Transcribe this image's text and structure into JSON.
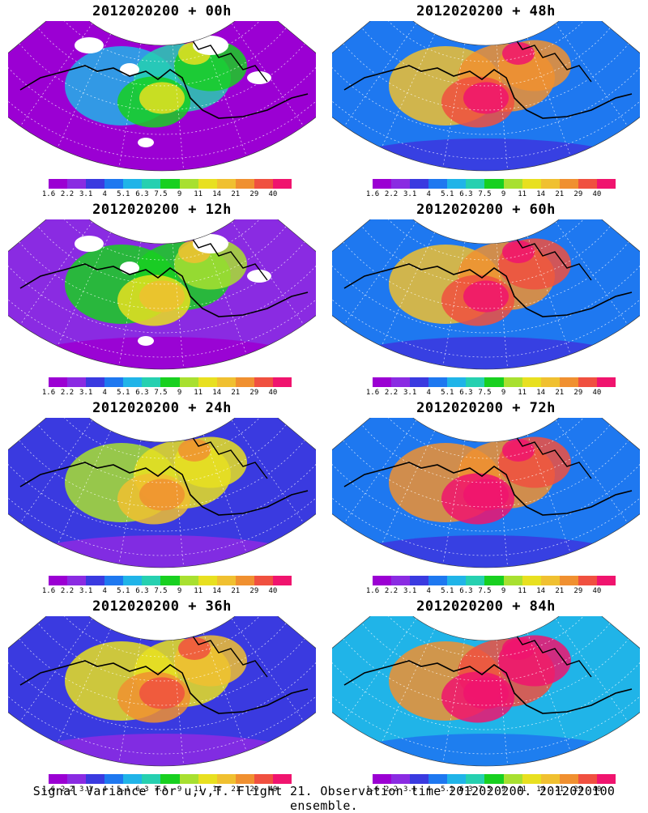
{
  "panels": [
    {
      "title": "2012020200 + 00h",
      "intensity": 0.2,
      "missing": true
    },
    {
      "title": "2012020200 + 48h",
      "intensity": 0.75,
      "missing": false
    },
    {
      "title": "2012020200 + 12h",
      "intensity": 0.35,
      "missing": true
    },
    {
      "title": "2012020200 + 60h",
      "intensity": 0.8,
      "missing": false
    },
    {
      "title": "2012020200 + 24h",
      "intensity": 0.5,
      "missing": false
    },
    {
      "title": "2012020200 + 72h",
      "intensity": 0.85,
      "missing": false
    },
    {
      "title": "2012020200 + 36h",
      "intensity": 0.6,
      "missing": false
    },
    {
      "title": "2012020200 + 84h",
      "intensity": 0.9,
      "missing": false
    }
  ],
  "colorbar": {
    "labels": [
      "1.6",
      "2.2",
      "3.1",
      "4",
      "5.1",
      "6.3",
      "7.5",
      "9",
      "11",
      "14",
      "21",
      "29",
      "40"
    ],
    "colors": [
      "#9b00d3",
      "#8a2be2",
      "#3a3ae0",
      "#1e78f0",
      "#20b4e8",
      "#26d0b0",
      "#18d020",
      "#a8e030",
      "#e8e020",
      "#f0c030",
      "#f09030",
      "#f05040",
      "#f0146e"
    ]
  },
  "footer": "Signal Variance for u,v,T. Flight 21. Observation time 2012020200. 2012020100 ensemble."
}
